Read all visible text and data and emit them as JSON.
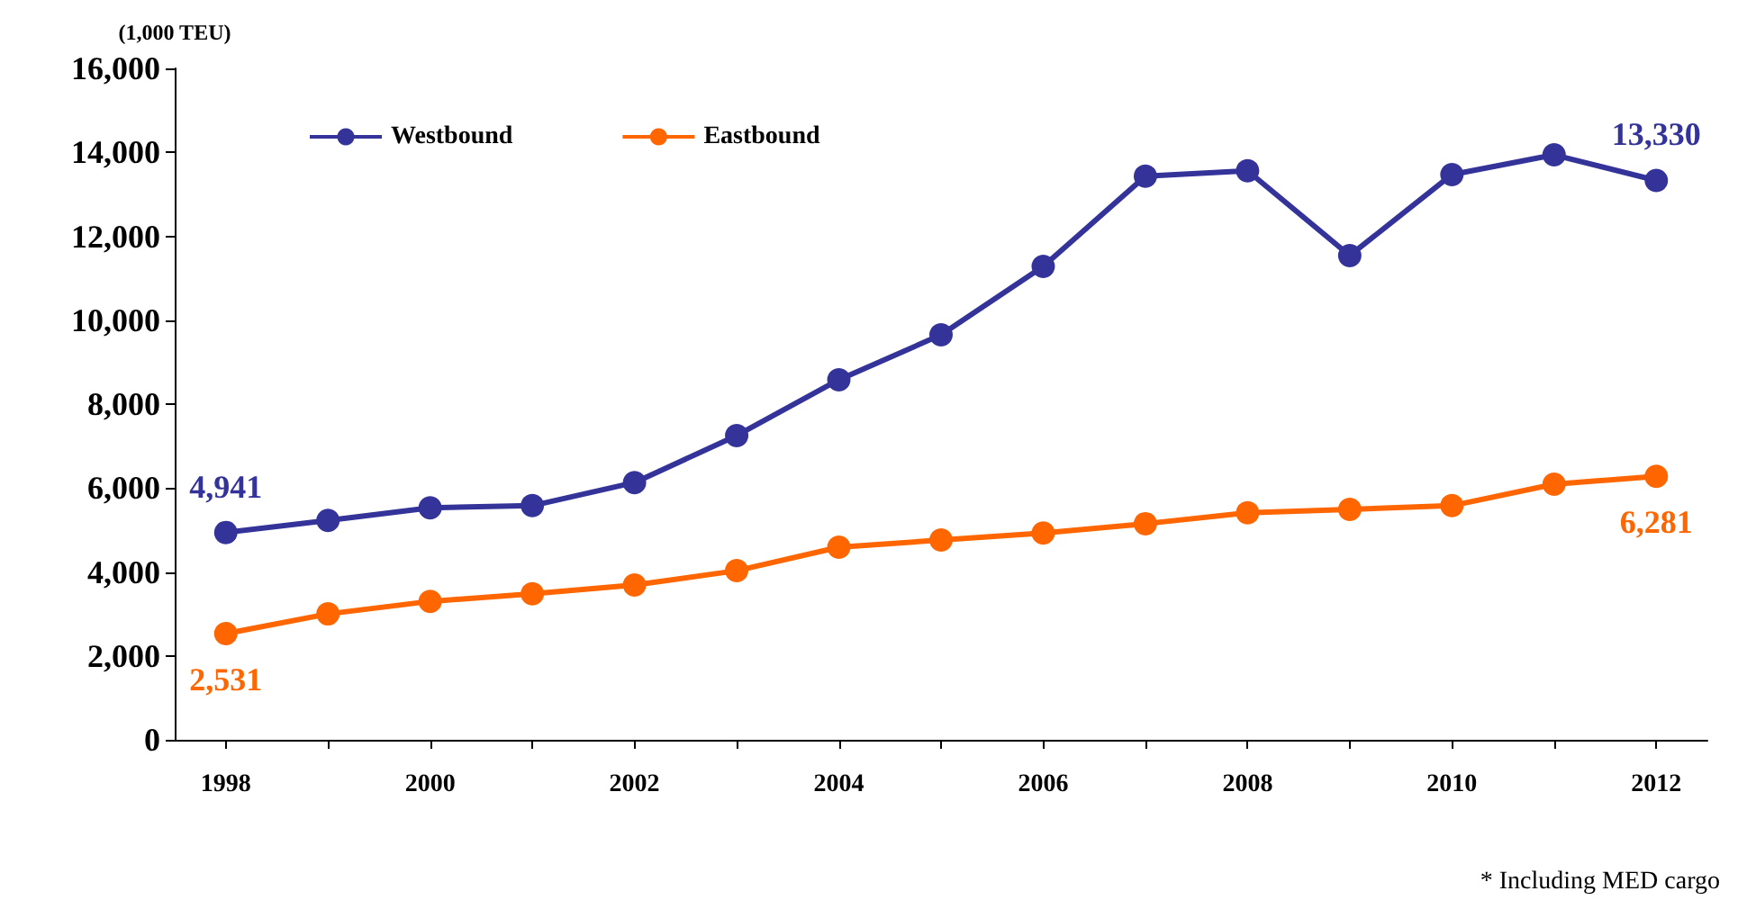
{
  "chart_data": {
    "type": "line",
    "ylabel": "(1,000 TEU)",
    "categories": [
      "1998",
      null,
      "2000",
      null,
      "2002",
      null,
      "2004",
      null,
      "2006",
      null,
      "2008",
      null,
      "2010",
      null,
      "2012"
    ],
    "series": [
      {
        "name": "Westbound",
        "color": "#333399",
        "values": [
          4941,
          5230,
          5530,
          5580,
          6130,
          7250,
          8580,
          9650,
          11280,
          13430,
          13560,
          11540,
          13470,
          13940,
          13330
        ],
        "value_labels": [
          "4,941",
          null,
          null,
          null,
          null,
          null,
          null,
          null,
          null,
          null,
          null,
          null,
          null,
          null,
          "13,330"
        ]
      },
      {
        "name": "Eastbound",
        "color": "#ff6600",
        "values": [
          2531,
          3000,
          3300,
          3480,
          3690,
          4030,
          4590,
          4760,
          4930,
          5150,
          5410,
          5490,
          5580,
          6090,
          6281
        ],
        "value_labels": [
          "2,531",
          null,
          null,
          null,
          null,
          null,
          null,
          null,
          null,
          null,
          null,
          null,
          null,
          null,
          "6,281"
        ]
      }
    ],
    "ylim": [
      0,
      16000
    ],
    "yticks": [
      0,
      {
        "value": 2000,
        "label": "2,000"
      },
      {
        "value": 4000,
        "label": "4,000"
      },
      {
        "value": 6000,
        "label": "6,000"
      },
      {
        "value": 8000,
        "label": "8,000"
      },
      {
        "value": 10000,
        "label": "10,000"
      },
      {
        "value": 12000,
        "label": "12,000"
      },
      {
        "value": 14000,
        "label": "14,000"
      },
      {
        "value": 16000,
        "label": "16,000"
      }
    ],
    "grid": false,
    "legend": "top left",
    "marker": "circle",
    "line_style": "solid",
    "annotations": [
      "* Including MED cargo"
    ]
  }
}
